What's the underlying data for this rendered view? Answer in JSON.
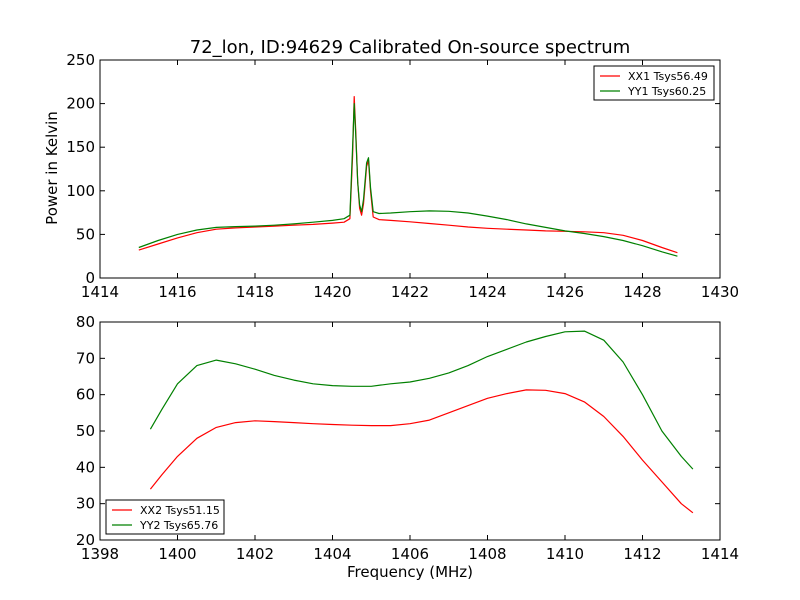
{
  "chart_data": [
    {
      "type": "line",
      "title": "72_lon, ID:94629 Calibrated On-source spectrum",
      "xlabel": "",
      "ylabel": "Power in Kelvin",
      "xlim": [
        1414,
        1430
      ],
      "ylim": [
        0,
        250
      ],
      "xticks": [
        "1414",
        "1416",
        "1418",
        "1420",
        "1422",
        "1424",
        "1426",
        "1428",
        "1430"
      ],
      "yticks": [
        "0",
        "50",
        "100",
        "150",
        "200",
        "250"
      ],
      "grid": false,
      "legend_position": "top-right",
      "series": [
        {
          "name": "XX1 Tsys56.49",
          "color": "#ff0000",
          "x": [
            1415.0,
            1415.5,
            1416.0,
            1416.5,
            1417.0,
            1417.5,
            1418.0,
            1418.5,
            1419.0,
            1419.5,
            1420.0,
            1420.3,
            1420.45,
            1420.52,
            1420.56,
            1420.6,
            1420.65,
            1420.7,
            1420.75,
            1420.8,
            1420.88,
            1420.93,
            1420.98,
            1421.05,
            1421.2,
            1421.5,
            1422.0,
            1422.5,
            1423.0,
            1423.5,
            1424.0,
            1424.5,
            1425.0,
            1425.5,
            1426.0,
            1426.5,
            1427.0,
            1427.5,
            1428.0,
            1428.5,
            1428.9
          ],
          "values": [
            32,
            39,
            46,
            52,
            56,
            57.5,
            58.5,
            59.5,
            60.5,
            61.5,
            63,
            64,
            68,
            140,
            208,
            170,
            110,
            80,
            72,
            85,
            128,
            135,
            100,
            70,
            67,
            66,
            64.5,
            62.5,
            60.5,
            58.5,
            57,
            56,
            55,
            54,
            53.5,
            53,
            52,
            49,
            43,
            35,
            29
          ]
        },
        {
          "name": "YY1 Tsys60.25",
          "color": "#008000",
          "x": [
            1415.0,
            1415.5,
            1416.0,
            1416.5,
            1417.0,
            1417.5,
            1418.0,
            1418.5,
            1419.0,
            1419.5,
            1420.0,
            1420.3,
            1420.45,
            1420.52,
            1420.56,
            1420.6,
            1420.65,
            1420.7,
            1420.75,
            1420.8,
            1420.88,
            1420.93,
            1420.98,
            1421.05,
            1421.2,
            1421.5,
            1422.0,
            1422.5,
            1423.0,
            1423.5,
            1424.0,
            1424.5,
            1425.0,
            1425.5,
            1426.0,
            1426.5,
            1427.0,
            1427.5,
            1428.0,
            1428.5,
            1428.9
          ],
          "values": [
            35,
            43,
            50,
            55,
            58,
            59,
            59.5,
            60.5,
            62,
            64,
            66,
            68,
            72,
            150,
            200,
            165,
            110,
            84,
            76,
            90,
            132,
            138,
            104,
            76,
            74,
            74.5,
            76,
            77,
            76.5,
            74.5,
            71,
            67,
            62,
            58,
            54,
            51,
            47.5,
            43,
            37,
            30,
            25
          ]
        }
      ]
    },
    {
      "type": "line",
      "title": "",
      "xlabel": "Frequency (MHz)",
      "ylabel": "",
      "xlim": [
        1398,
        1414
      ],
      "ylim": [
        20,
        80
      ],
      "xticks": [
        "1398",
        "1400",
        "1402",
        "1404",
        "1406",
        "1408",
        "1410",
        "1412",
        "1414"
      ],
      "yticks": [
        "20",
        "30",
        "40",
        "50",
        "60",
        "70",
        "80"
      ],
      "grid": false,
      "legend_position": "bottom-left",
      "series": [
        {
          "name": "XX2 Tsys51.15",
          "color": "#ff0000",
          "x": [
            1399.3,
            1399.6,
            1400.0,
            1400.5,
            1401.0,
            1401.5,
            1402.0,
            1402.5,
            1403.0,
            1403.5,
            1404.0,
            1404.5,
            1405.0,
            1405.5,
            1406.0,
            1406.5,
            1407.0,
            1407.5,
            1408.0,
            1408.5,
            1409.0,
            1409.5,
            1410.0,
            1410.5,
            1411.0,
            1411.5,
            1412.0,
            1412.5,
            1413.0,
            1413.3
          ],
          "values": [
            34,
            38,
            43,
            48,
            51,
            52.3,
            52.8,
            52.6,
            52.3,
            52.0,
            51.8,
            51.6,
            51.5,
            51.5,
            52.0,
            53.0,
            55.0,
            57.0,
            59.0,
            60.3,
            61.3,
            61.2,
            60.3,
            58.0,
            54.0,
            48.5,
            42.0,
            36.0,
            30.0,
            27.5
          ]
        },
        {
          "name": "YY2 Tsys65.76",
          "color": "#008000",
          "x": [
            1399.3,
            1399.6,
            1400.0,
            1400.5,
            1401.0,
            1401.5,
            1402.0,
            1402.5,
            1403.0,
            1403.5,
            1404.0,
            1404.5,
            1405.0,
            1405.5,
            1406.0,
            1406.5,
            1407.0,
            1407.5,
            1408.0,
            1408.5,
            1409.0,
            1409.5,
            1410.0,
            1410.5,
            1411.0,
            1411.5,
            1412.0,
            1412.5,
            1413.0,
            1413.3
          ],
          "values": [
            50.5,
            56,
            63,
            68,
            69.5,
            68.5,
            67,
            65.3,
            64,
            63,
            62.5,
            62.3,
            62.3,
            63,
            63.5,
            64.5,
            66,
            68,
            70.5,
            72.5,
            74.5,
            76,
            77.3,
            77.5,
            75,
            69,
            60,
            50,
            43,
            39.5
          ]
        }
      ]
    }
  ]
}
